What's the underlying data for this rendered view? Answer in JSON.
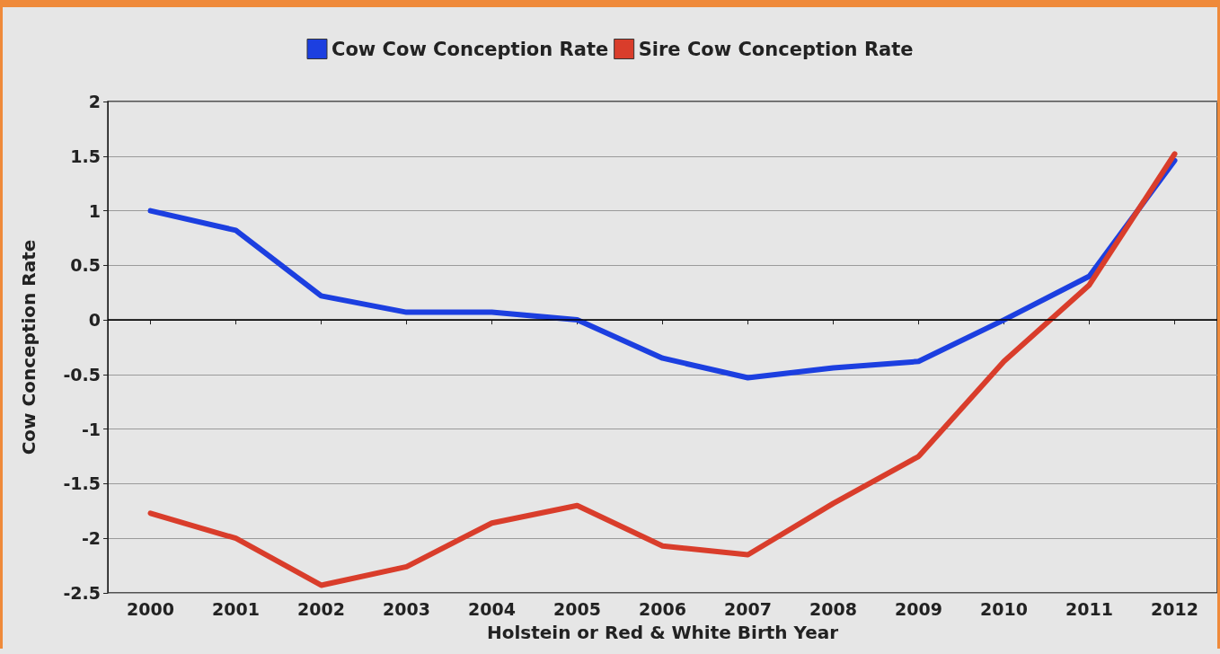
{
  "chart_data": {
    "type": "line",
    "xlabel": "Holstein or Red & White Birth Year",
    "ylabel": "Cow Conception Rate",
    "categories": [
      "2000",
      "2001",
      "2002",
      "2003",
      "2004",
      "2005",
      "2006",
      "2007",
      "2008",
      "2009",
      "2010",
      "2011",
      "2012"
    ],
    "series": [
      {
        "name": "Cow Cow Conception Rate",
        "color": "#1c3fe0",
        "values": [
          1.0,
          0.82,
          0.22,
          0.07,
          0.07,
          0.0,
          -0.35,
          -0.53,
          -0.44,
          -0.38,
          0.0,
          0.4,
          1.46
        ]
      },
      {
        "name": "Sire Cow Conception Rate",
        "color": "#d93d2b",
        "values": [
          -1.77,
          -2.0,
          -2.43,
          -2.26,
          -1.86,
          -1.7,
          -2.07,
          -2.15,
          -1.68,
          -1.25,
          -0.38,
          0.32,
          1.52
        ]
      }
    ],
    "ylim": [
      -2.5,
      2
    ],
    "yticks": [
      -2.5,
      -2,
      -1.5,
      -1,
      -0.5,
      0,
      0.5,
      1,
      1.5,
      2
    ],
    "ref_lines": [
      {
        "axis": "y",
        "value": 0,
        "color": "#000000"
      }
    ],
    "grid": "y",
    "legend": "top",
    "marker": "none",
    "line_style": "solid"
  }
}
